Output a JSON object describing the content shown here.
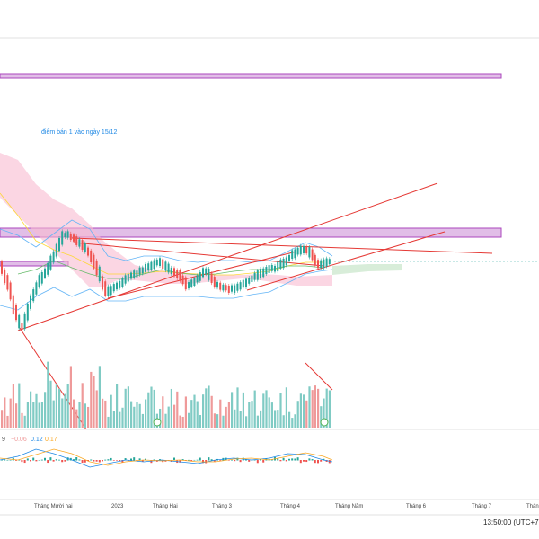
{
  "chart_data": {
    "type": "candlestick",
    "annotation": "điểm bán 1 vào ngày 15/12",
    "x_tick_labels": [
      "Tháng Mười hai",
      "2023",
      "Tháng Hai",
      "Tháng 3",
      "Tháng 4",
      "Tháng Năm",
      "Tháng 6",
      "Tháng 7",
      "Thán"
    ],
    "macd_values": [
      {
        "text": "9",
        "color": "#555555"
      },
      {
        "text": "−0.06",
        "color": "#ef9a9a"
      },
      {
        "text": "0.12",
        "color": "#1e88e5"
      },
      {
        "text": "0.17",
        "color": "#f9a825"
      }
    ],
    "clock": "13:50:00 (UTC+7)",
    "colors": {
      "up": "#26a69a",
      "down": "#ef5350",
      "volume_up": "#80cbc4",
      "volume_down": "#ef9a9a",
      "trendline": "#e53935",
      "zone_fill": "#e1bee7",
      "zone_stroke": "#ab47bc",
      "bollinger": "#64b5f6",
      "cloud": "#f8bbd0"
    }
  }
}
